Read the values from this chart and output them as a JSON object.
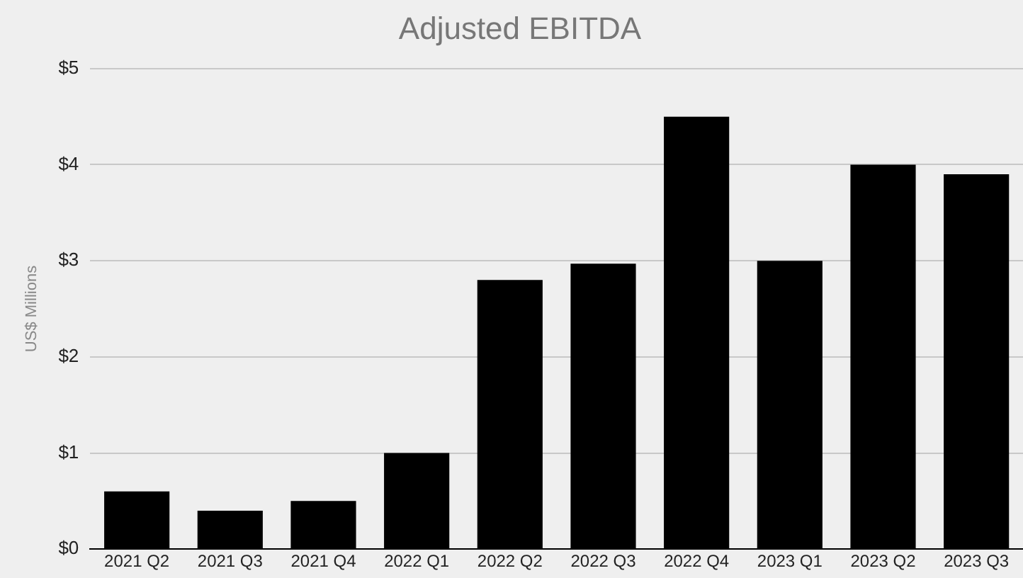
{
  "chart_data": {
    "type": "bar",
    "title": "Adjusted EBITDA",
    "ylabel": "US$ Millions",
    "categories": [
      "2021 Q2",
      "2021 Q3",
      "2021 Q4",
      "2022 Q1",
      "2022 Q2",
      "2022 Q3",
      "2022 Q4",
      "2023 Q1",
      "2023 Q2",
      "2023 Q3"
    ],
    "values": [
      0.6,
      0.4,
      0.5,
      1.0,
      2.8,
      2.97,
      4.5,
      3.0,
      4.0,
      3.9
    ],
    "color": "#000000",
    "ylim": [
      0,
      5
    ],
    "yticks": [
      {
        "value": 0,
        "label": "$0"
      },
      {
        "value": 1,
        "label": "$1"
      },
      {
        "value": 2,
        "label": "$2"
      },
      {
        "value": 3,
        "label": "$3"
      },
      {
        "value": 4,
        "label": "$4"
      },
      {
        "value": 5,
        "label": "$5"
      }
    ],
    "grid": "y"
  }
}
